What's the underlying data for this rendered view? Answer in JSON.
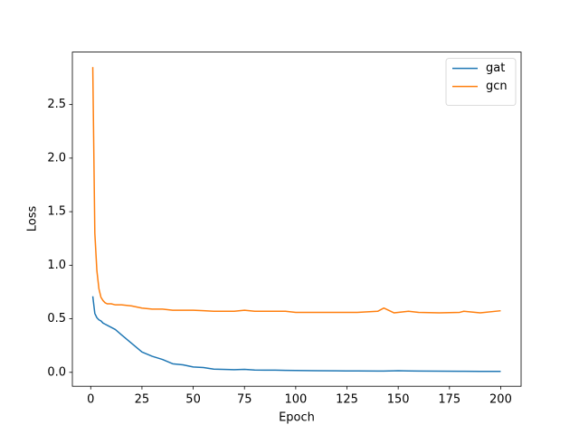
{
  "chart_data": {
    "type": "line",
    "x_label": "Epoch",
    "y_label": "Loss",
    "x": [
      1,
      2,
      3,
      4,
      5,
      6,
      7,
      8,
      10,
      12,
      15,
      20,
      25,
      30,
      35,
      40,
      45,
      50,
      55,
      60,
      70,
      75,
      80,
      85,
      90,
      95,
      100,
      110,
      120,
      130,
      140,
      143,
      148,
      150,
      155,
      160,
      170,
      180,
      182,
      190,
      200
    ],
    "series": [
      {
        "name": "gat",
        "color": "#1f77b4",
        "values": [
          0.71,
          0.55,
          0.51,
          0.49,
          0.48,
          0.46,
          0.45,
          0.44,
          0.42,
          0.4,
          0.35,
          0.27,
          0.19,
          0.15,
          0.12,
          0.08,
          0.07,
          0.05,
          0.045,
          0.03,
          0.025,
          0.028,
          0.022,
          0.02,
          0.02,
          0.018,
          0.017,
          0.015,
          0.014,
          0.013,
          0.012,
          0.012,
          0.014,
          0.015,
          0.013,
          0.012,
          0.011,
          0.01,
          0.01,
          0.009,
          0.009
        ]
      },
      {
        "name": "gcn",
        "color": "#ff7f0e",
        "values": [
          2.85,
          1.3,
          0.95,
          0.78,
          0.7,
          0.67,
          0.65,
          0.64,
          0.64,
          0.63,
          0.63,
          0.62,
          0.6,
          0.59,
          0.59,
          0.58,
          0.58,
          0.58,
          0.575,
          0.57,
          0.57,
          0.58,
          0.57,
          0.57,
          0.57,
          0.57,
          0.56,
          0.56,
          0.56,
          0.56,
          0.57,
          0.6,
          0.555,
          0.56,
          0.57,
          0.56,
          0.555,
          0.56,
          0.57,
          0.555,
          0.575
        ]
      }
    ],
    "xlim": [
      -8.95,
      209.95
    ],
    "ylim": [
      -0.13,
      2.99
    ],
    "xticks": [
      0,
      25,
      50,
      75,
      100,
      125,
      150,
      175,
      200
    ],
    "yticks": [
      {
        "value": 0,
        "label": "0.0"
      },
      0.5,
      {
        "value": 1,
        "label": "1.0"
      },
      1.5,
      {
        "value": 2,
        "label": "2.0"
      },
      2.5
    ],
    "legend": "upper right"
  }
}
